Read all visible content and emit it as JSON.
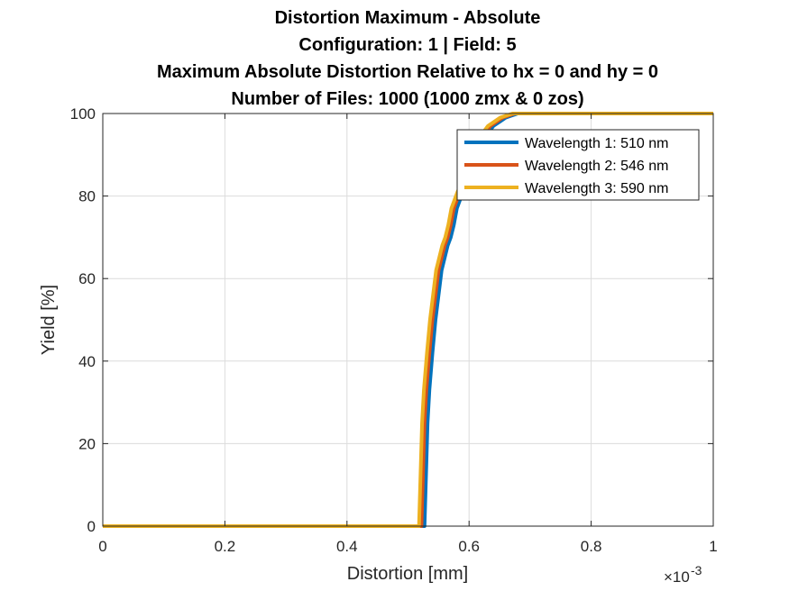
{
  "chart_data": {
    "type": "line",
    "title_lines": [
      "Distortion Maximum - Absolute",
      "Configuration: 1 | Field: 5",
      "Maximum Absolute Distortion Relative to hx = 0 and hy = 0",
      "Number of Files: 1000 (1000 zmx &  0 zos)"
    ],
    "xlabel": "Distortion [mm]",
    "ylabel": "Yield [%]",
    "xlim": [
      0,
      0.001
    ],
    "ylim": [
      0,
      100
    ],
    "x_exponent": -3,
    "x_exponent_label": "×10",
    "x_exponent_power": "-3",
    "x_ticks": [
      0,
      0.0002,
      0.0004,
      0.0006,
      0.0008,
      0.001
    ],
    "x_tick_labels": [
      "0",
      "0.2",
      "0.4",
      "0.6",
      "0.8",
      "1"
    ],
    "y_ticks": [
      0,
      20,
      40,
      60,
      80,
      100
    ],
    "y_tick_labels": [
      "0",
      "20",
      "40",
      "60",
      "80",
      "100"
    ],
    "grid": true,
    "legend_location": "top-right",
    "series": [
      {
        "name": "Wavelength 1: 510 nm",
        "color": "#0072BD",
        "x": [
          0,
          0.000527,
          0.000528,
          0.00053,
          0.000532,
          0.000535,
          0.00054,
          0.000545,
          0.00055,
          0.000555,
          0.00056,
          0.000565,
          0.00057,
          0.000575,
          0.00058,
          0.000585,
          0.00059,
          0.0006,
          0.00061,
          0.00062,
          0.00063,
          0.00064,
          0.00065,
          0.00066,
          0.00067,
          0.00068,
          0.00069,
          0.001
        ],
        "y": [
          0,
          0,
          5,
          15,
          25,
          33,
          42,
          50,
          56,
          62,
          65,
          68,
          70,
          73,
          77,
          79,
          81,
          84,
          88,
          92,
          95,
          97,
          98,
          99,
          99.5,
          100,
          100,
          100
        ]
      },
      {
        "name": "Wavelength 2: 546 nm",
        "color": "#D95319",
        "x": [
          0,
          0.000522,
          0.000523,
          0.000525,
          0.000527,
          0.00053,
          0.000535,
          0.00054,
          0.000545,
          0.00055,
          0.000555,
          0.00056,
          0.000565,
          0.00057,
          0.000575,
          0.00058,
          0.000585,
          0.000595,
          0.000605,
          0.000615,
          0.000625,
          0.000635,
          0.000645,
          0.000655,
          0.000665,
          0.000675,
          0.000685,
          0.001
        ],
        "y": [
          0,
          0,
          5,
          15,
          25,
          33,
          42,
          50,
          56,
          62,
          65,
          68,
          70,
          73,
          77,
          79,
          81,
          84,
          88,
          92,
          95,
          97,
          98,
          99,
          99.5,
          100,
          100,
          100
        ]
      },
      {
        "name": "Wavelength 3: 590 nm",
        "color": "#EDB120",
        "x": [
          0,
          0.000518,
          0.000519,
          0.000521,
          0.000523,
          0.000526,
          0.000531,
          0.000536,
          0.000541,
          0.000546,
          0.000551,
          0.000556,
          0.000561,
          0.000566,
          0.000571,
          0.000576,
          0.000581,
          0.000591,
          0.000601,
          0.000611,
          0.000621,
          0.000631,
          0.000641,
          0.000651,
          0.000661,
          0.000671,
          0.000681,
          0.001
        ],
        "y": [
          0,
          0,
          5,
          15,
          25,
          33,
          42,
          50,
          56,
          62,
          65,
          68,
          70,
          73,
          77,
          79,
          81,
          84,
          88,
          92,
          95,
          97,
          98,
          99,
          99.5,
          100,
          100,
          100
        ]
      }
    ]
  }
}
